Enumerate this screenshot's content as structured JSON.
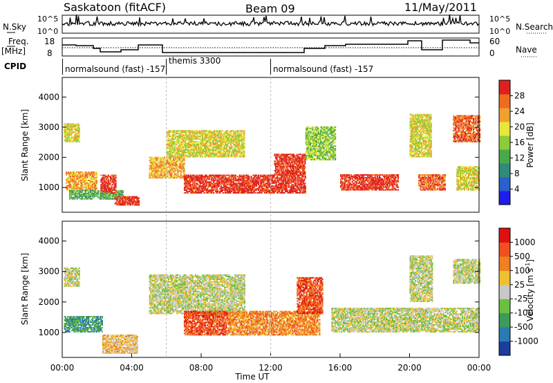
{
  "header": {
    "station": "Saskatoon (fitACF)",
    "beam": "Beam 09",
    "date": "11/May/2011"
  },
  "panels": {
    "nsky": {
      "label": "N.Sky",
      "tick_hi": "10^5",
      "tick_lo": "10^0"
    },
    "nsearch": {
      "label": "N.Search",
      "tick_hi": "10^5",
      "tick_lo": "10^0"
    },
    "freq": {
      "label_line1": "Freq.",
      "label_line2": "[MHz]",
      "tick_hi": "18",
      "tick_lo": "8"
    },
    "nave": {
      "label": "Nave",
      "tick_hi": "60",
      "tick_lo": "0"
    },
    "cpid": {
      "label": "CPID",
      "segments": [
        {
          "text": "normalsound (fast) -157",
          "start_hour": 0
        },
        {
          "text": "themis 3300",
          "start_hour": 6
        },
        {
          "text": "normalsound (fast) -157",
          "start_hour": 12
        }
      ]
    }
  },
  "chart_data": [
    {
      "type": "heatmap",
      "title": "",
      "xlabel": "",
      "ylabel": "Slant Range [km]",
      "xlim_hours": [
        0,
        24
      ],
      "ylim_km": [
        180,
        4650
      ],
      "yticks": [
        "1000",
        "2000",
        "3000",
        "4000"
      ],
      "colorbar": {
        "label": "Power [dB]",
        "ticks": [
          "4",
          "8",
          "12",
          "16",
          "20",
          "24",
          "28"
        ],
        "colors": [
          "#1d1df0",
          "#2a5fcc",
          "#2e8b7a",
          "#4aa84a",
          "#8ccc3a",
          "#e8e83a",
          "#f0a030",
          "#f06a20",
          "#e02020"
        ]
      },
      "echo_regions": [
        {
          "t0": 0.1,
          "t1": 1.0,
          "r0": 2500,
          "r1": 3100,
          "level": 5
        },
        {
          "t0": 0.2,
          "t1": 2.0,
          "r0": 900,
          "r1": 1500,
          "level": 6
        },
        {
          "t0": 0.4,
          "t1": 3.5,
          "r0": 600,
          "r1": 900,
          "level": 3
        },
        {
          "t0": 2.2,
          "t1": 3.1,
          "r0": 800,
          "r1": 1400,
          "level": 8
        },
        {
          "t0": 3.0,
          "t1": 4.4,
          "r0": 400,
          "r1": 700,
          "level": 8
        },
        {
          "t0": 5.0,
          "t1": 7.0,
          "r0": 1300,
          "r1": 2000,
          "level": 6
        },
        {
          "t0": 6.0,
          "t1": 10.5,
          "r0": 2000,
          "r1": 2900,
          "level": 5
        },
        {
          "t0": 7.0,
          "t1": 14.0,
          "r0": 800,
          "r1": 1400,
          "level": 8
        },
        {
          "t0": 12.2,
          "t1": 14.0,
          "r0": 1400,
          "r1": 2100,
          "level": 8
        },
        {
          "t0": 14.0,
          "t1": 15.7,
          "r0": 1900,
          "r1": 3000,
          "level": 4
        },
        {
          "t0": 16.0,
          "t1": 19.3,
          "r0": 900,
          "r1": 1400,
          "level": 8
        },
        {
          "t0": 20.5,
          "t1": 22.0,
          "r0": 900,
          "r1": 1400,
          "level": 7
        },
        {
          "t0": 20.0,
          "t1": 21.2,
          "r0": 2000,
          "r1": 3400,
          "level": 5
        },
        {
          "t0": 22.5,
          "t1": 24.0,
          "r0": 2500,
          "r1": 3400,
          "level": 7
        },
        {
          "t0": 22.7,
          "t1": 24.0,
          "r0": 900,
          "r1": 1700,
          "level": 5
        }
      ]
    },
    {
      "type": "heatmap",
      "title": "",
      "xlabel": "Time UT",
      "ylabel": "Slant Range [km]",
      "xlim_hours": [
        0,
        24
      ],
      "ylim_km": [
        180,
        4650
      ],
      "xticks": [
        "00:00",
        "04:00",
        "08:00",
        "12:00",
        "16:00",
        "20:00",
        "00:00"
      ],
      "yticks": [
        "1000",
        "2000",
        "3000",
        "4000"
      ],
      "colorbar": {
        "label": "Velocity [m s-1]",
        "ticks": [
          "1000",
          "500",
          "100",
          "25",
          "-25",
          "-100",
          "-500",
          "-1000"
        ],
        "colors": [
          "#1c3ca0",
          "#2a7ab4",
          "#3c9a5a",
          "#6ac040",
          "#c8c8c8",
          "#f0c030",
          "#f08020",
          "#f05020",
          "#e01010"
        ]
      },
      "echo_regions": [
        {
          "t0": 0.1,
          "t1": 1.0,
          "r0": 2500,
          "r1": 3100,
          "level": 4
        },
        {
          "t0": 0.1,
          "t1": 2.3,
          "r0": 1000,
          "r1": 1500,
          "level": 2
        },
        {
          "t0": 2.3,
          "t1": 4.3,
          "r0": 300,
          "r1": 900,
          "level": 5
        },
        {
          "t0": 5.0,
          "t1": 10.5,
          "r0": 1600,
          "r1": 2900,
          "level": 4
        },
        {
          "t0": 7.0,
          "t1": 9.5,
          "r0": 900,
          "r1": 1700,
          "level": 7
        },
        {
          "t0": 9.5,
          "t1": 14.8,
          "r0": 900,
          "r1": 1700,
          "level": 6
        },
        {
          "t0": 13.5,
          "t1": 15.0,
          "r0": 1600,
          "r1": 2800,
          "level": 7
        },
        {
          "t0": 15.5,
          "t1": 24.0,
          "r0": 1000,
          "r1": 1800,
          "level": 4
        },
        {
          "t0": 20.0,
          "t1": 21.3,
          "r0": 2000,
          "r1": 3500,
          "level": 4
        },
        {
          "t0": 22.5,
          "t1": 24.0,
          "r0": 2600,
          "r1": 3400,
          "level": 4
        }
      ]
    }
  ]
}
